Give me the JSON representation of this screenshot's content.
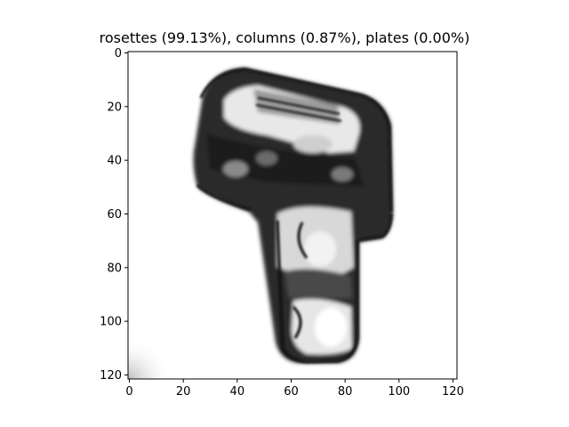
{
  "figure": {
    "title": "rosettes (99.13%), columns (0.87%), plates (0.00%)"
  },
  "image": {
    "description_kind": "grayscale ice crystal image",
    "colormap": "gray"
  },
  "axes": {
    "x": {
      "ticks": [
        0,
        20,
        40,
        60,
        80,
        100,
        120
      ],
      "range": [
        -0.5,
        121.5
      ]
    },
    "y": {
      "ticks": [
        0,
        20,
        40,
        60,
        80,
        100,
        120
      ],
      "range": [
        -0.5,
        121.5
      ],
      "inverted": true
    }
  }
}
